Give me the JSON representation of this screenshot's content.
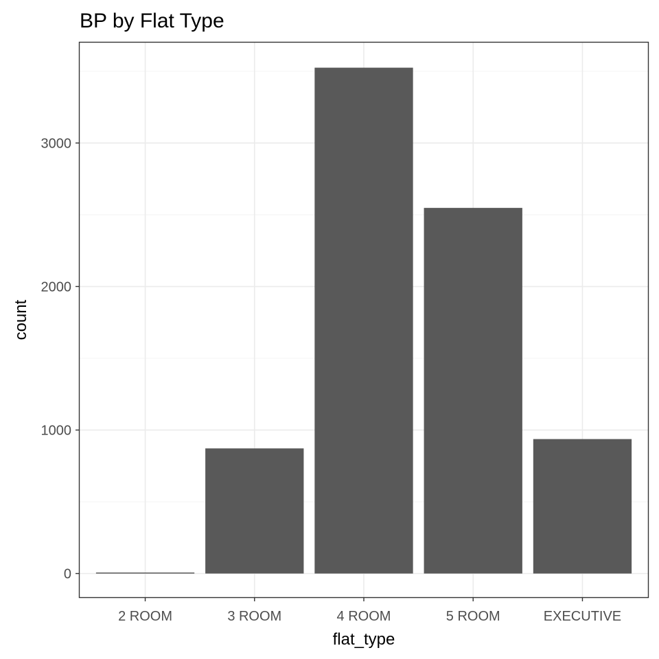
{
  "chart_data": {
    "type": "bar",
    "title": "BP by Flat Type",
    "xlabel": "flat_type",
    "ylabel": "count",
    "categories": [
      "2 ROOM",
      "3 ROOM",
      "4 ROOM",
      "5 ROOM",
      "EXECUTIVE"
    ],
    "values": [
      4,
      872,
      3525,
      2548,
      937
    ],
    "ylim": [
      -165,
      3700
    ],
    "yticks": [
      0,
      1000,
      2000,
      3000
    ],
    "grid": true,
    "bar_color": "#595959",
    "theme": "bw"
  }
}
